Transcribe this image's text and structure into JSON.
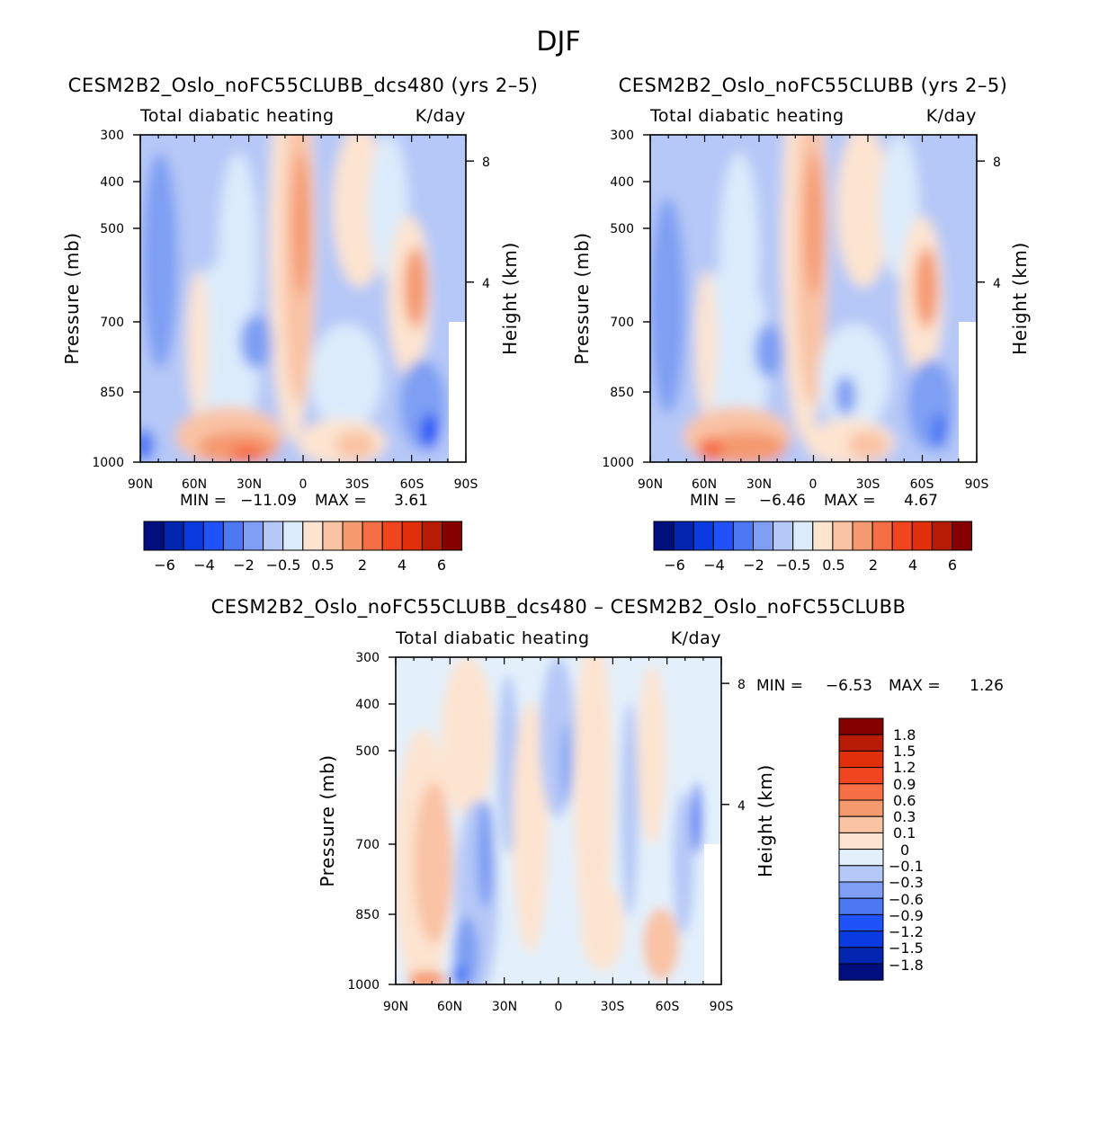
{
  "figure": {
    "suptitle": "DJF"
  },
  "chart_data": [
    {
      "type": "heatmap",
      "title": "CESM2B2_Oslo_noFC55CLUBB_dcs480 (yrs 2–5)",
      "subtitle_left": "Total diabatic heating",
      "subtitle_right": "K/day",
      "xlabel": "",
      "ylabel": "Pressure (mb)",
      "ylabel_right": "Height (km)",
      "x_ticks": [
        "90N",
        "60N",
        "30N",
        "0",
        "30S",
        "60S",
        "90S"
      ],
      "y_ticks": [
        "300",
        "400",
        "500",
        "700",
        "850",
        "1000"
      ],
      "y_right_ticks": [
        "8",
        "4"
      ],
      "stats": {
        "min_label": "MIN =",
        "min_value": "−11.09",
        "max_label": "MAX =",
        "max_value": "3.61"
      },
      "colorbar_labels": [
        "−6",
        "−4",
        "−2",
        "−0.5",
        "0.5",
        "2",
        "4",
        "6"
      ],
      "colors": [
        "#000e7e",
        "#0226b0",
        "#0a3be0",
        "#1f52f8",
        "#4c78f4",
        "#7e9ff3",
        "#b5c8f7",
        "#dcebfb",
        "#fde4d0",
        "#f9c3a4",
        "#f5996f",
        "#f56e44",
        "#f1451f",
        "#e02f0a",
        "#b81c06",
        "#850000"
      ]
    },
    {
      "type": "heatmap",
      "title": "CESM2B2_Oslo_noFC55CLUBB (yrs 2–5)",
      "subtitle_left": "Total diabatic heating",
      "subtitle_right": "K/day",
      "xlabel": "",
      "ylabel": "Pressure (mb)",
      "ylabel_right": "Height (km)",
      "x_ticks": [
        "90N",
        "60N",
        "30N",
        "0",
        "30S",
        "60S",
        "90S"
      ],
      "y_ticks": [
        "300",
        "400",
        "500",
        "700",
        "850",
        "1000"
      ],
      "y_right_ticks": [
        "8",
        "4"
      ],
      "stats": {
        "min_label": "MIN =",
        "min_value": "−6.46",
        "max_label": "MAX =",
        "max_value": "4.67"
      },
      "colorbar_labels": [
        "−6",
        "−4",
        "−2",
        "−0.5",
        "0.5",
        "2",
        "4",
        "6"
      ],
      "colors": [
        "#000e7e",
        "#0226b0",
        "#0a3be0",
        "#1f52f8",
        "#4c78f4",
        "#7e9ff3",
        "#b5c8f7",
        "#dcebfb",
        "#fde4d0",
        "#f9c3a4",
        "#f5996f",
        "#f56e44",
        "#f1451f",
        "#e02f0a",
        "#b81c06",
        "#850000"
      ]
    },
    {
      "type": "heatmap",
      "title": "CESM2B2_Oslo_noFC55CLUBB_dcs480 – CESM2B2_Oslo_noFC55CLUBB",
      "subtitle_left": "Total diabatic heating",
      "subtitle_right": "K/day",
      "xlabel": "",
      "ylabel": "Pressure (mb)",
      "ylabel_right": "Height (km)",
      "x_ticks": [
        "90N",
        "60N",
        "30N",
        "0",
        "30S",
        "60S",
        "90S"
      ],
      "y_ticks": [
        "300",
        "400",
        "500",
        "700",
        "850",
        "1000"
      ],
      "y_right_ticks": [
        "8",
        "4"
      ],
      "stats": {
        "min_label": "MIN =",
        "min_value": "−6.53",
        "max_label": "MAX =",
        "max_value": "1.26"
      },
      "colorbar_labels": [
        "1.8",
        "1.5",
        "1.2",
        "0.9",
        "0.6",
        "0.3",
        "0.1",
        "0",
        "−0.1",
        "−0.3",
        "−0.6",
        "−0.9",
        "−1.2",
        "−1.5",
        "−1.8"
      ],
      "colors": [
        "#850000",
        "#b81c06",
        "#e02f0a",
        "#f1451f",
        "#f56e44",
        "#f5996f",
        "#f9c3a4",
        "#fde4d0",
        "#e3f0fb",
        "#b5c8f7",
        "#7e9ff3",
        "#4c78f4",
        "#1f52f8",
        "#0a3be0",
        "#0226b0",
        "#000e7e"
      ]
    }
  ]
}
